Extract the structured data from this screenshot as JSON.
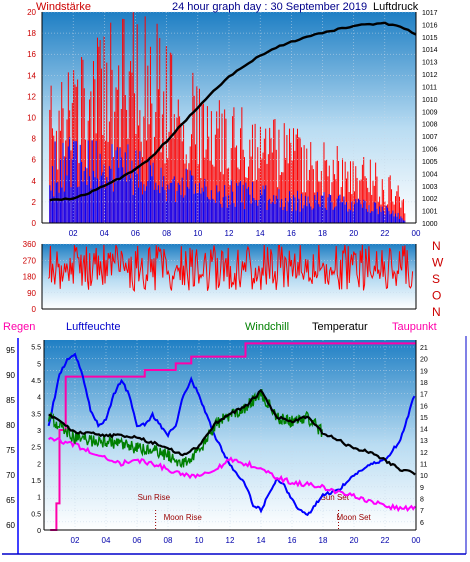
{
  "header": {
    "left_label": "Windstärke",
    "title": "24 hour graph day : 30 September 2019",
    "right_label": "Luftdruck"
  },
  "colors": {
    "wind_gust": "#ff0000",
    "wind_avg": "#0000ff",
    "pressure": "#000000",
    "direction": "#ff0000",
    "rain": "#ff00aa",
    "humidity": "#0000ff",
    "windchill": "#008000",
    "temperature": "#000000",
    "dewpoint": "#ff00ff",
    "tick_blue": "#0000aa",
    "label_red": "#cc0000"
  },
  "x_ticks": [
    "02",
    "04",
    "06",
    "08",
    "10",
    "12",
    "14",
    "16",
    "18",
    "20",
    "22",
    "00"
  ],
  "chart_data": [
    {
      "type": "bar",
      "name": "wind-pressure",
      "y_left_ticks": [
        "0",
        "2",
        "4",
        "6",
        "8",
        "10",
        "12",
        "14",
        "16",
        "18",
        "20"
      ],
      "ylim_left": [
        0,
        20
      ],
      "y_right_ticks": [
        "1000",
        "1001",
        "1002",
        "1003",
        "1004",
        "1005",
        "1006",
        "1007",
        "1008",
        "1009",
        "1010",
        "1011",
        "1012",
        "1013",
        "1014",
        "1015",
        "1016",
        "1017"
      ],
      "ylim_right": [
        1000,
        1017
      ],
      "pressure_x": [
        0.5,
        2,
        3,
        4,
        5,
        6,
        7,
        8,
        9,
        10,
        11,
        12,
        13,
        14,
        15,
        16,
        17,
        18,
        19,
        20,
        21,
        22,
        23,
        24
      ],
      "pressure_values": [
        1001.8,
        1002.0,
        1002.4,
        1003.0,
        1003.6,
        1004.3,
        1005.3,
        1006.6,
        1008.0,
        1009.3,
        1010.6,
        1011.8,
        1012.7,
        1013.5,
        1014.1,
        1014.6,
        1015.0,
        1015.3,
        1015.6,
        1015.9,
        1016.0,
        1016.1,
        1015.8,
        1015.2
      ],
      "gust_profile_x": [
        0.5,
        2,
        4,
        6,
        8,
        10,
        12,
        14,
        16,
        18,
        20,
        22,
        23.3
      ],
      "gust_profile_values": [
        10,
        12,
        14,
        15,
        14,
        10,
        9,
        8,
        7,
        6,
        5,
        4,
        2
      ],
      "avg_profile_x": [
        0.5,
        2,
        4,
        6,
        8,
        10,
        12,
        14,
        16,
        18,
        20,
        22,
        23.3
      ],
      "avg_profile_values": [
        6,
        7,
        6,
        6,
        5,
        4,
        3.5,
        3,
        2.5,
        2.5,
        2,
        1.5,
        0.5
      ]
    },
    {
      "type": "line",
      "name": "wind-direction",
      "y_left_ticks": [
        "0",
        "90",
        "180",
        "270",
        "360"
      ],
      "ylim": [
        0,
        360
      ],
      "compass_labels": [
        "N",
        "W",
        "S",
        "O",
        "N"
      ],
      "mean_direction": 230,
      "spread": 130
    },
    {
      "type": "line",
      "name": "climate",
      "header": {
        "rain": "Regen",
        "humidity": "Luftfeuchte",
        "windchill": "Windchill",
        "temperature": "Temperatur",
        "dewpoint": "Taupunkt"
      },
      "rain_ticks": [
        "0",
        "0.5",
        "1",
        "1.5",
        "2",
        "2.5",
        "3",
        "3.5",
        "4",
        "4.5",
        "5",
        "5.5"
      ],
      "rain_ylim": [
        0,
        5.7
      ],
      "humidity_ticks": [
        "60",
        "65",
        "70",
        "75",
        "80",
        "85",
        "90",
        "95"
      ],
      "humidity_ylim": [
        59,
        97
      ],
      "temp_ticks": [
        "6",
        "7",
        "8",
        "9",
        "10",
        "11",
        "12",
        "13",
        "14",
        "15",
        "16",
        "17",
        "18",
        "19",
        "20",
        "21"
      ],
      "temp_ylim": [
        5.3,
        21.6
      ],
      "temperature": {
        "x": [
          0.3,
          1,
          2,
          3,
          4,
          5,
          6,
          7,
          8,
          9,
          10,
          11,
          12,
          13,
          14,
          15,
          16,
          17,
          18,
          19,
          20,
          21,
          22,
          23,
          24
        ],
        "y": [
          15.2,
          14.6,
          13.7,
          13.6,
          13.4,
          13.4,
          13.2,
          12.8,
          12.3,
          11.7,
          12.5,
          14.4,
          15.3,
          15.9,
          17.2,
          15.0,
          14.6,
          15.0,
          13.6,
          13.0,
          12.3,
          12.0,
          11.3,
          10.5,
          10.1
        ]
      },
      "windchill": {
        "x": [
          0.3,
          1,
          2,
          3,
          4,
          5,
          6,
          7,
          8,
          9,
          10,
          11,
          12,
          13,
          14,
          15,
          16,
          17,
          18
        ],
        "y": [
          15.0,
          14.3,
          13.2,
          13.0,
          12.9,
          12.6,
          12.3,
          12.1,
          11.7,
          11.0,
          12.0,
          14.2,
          15.2,
          15.8,
          17.0,
          15.0,
          14.6,
          15.0,
          13.6
        ]
      },
      "dewpoint": {
        "x": [
          0.3,
          1,
          2,
          3,
          4,
          5,
          6,
          7,
          8,
          9,
          10,
          11,
          12,
          13,
          14,
          15,
          16,
          17,
          18,
          19,
          20,
          21,
          22,
          23,
          24
        ],
        "y": [
          13.2,
          13.0,
          12.6,
          12.0,
          11.5,
          11.0,
          11.3,
          11.0,
          10.5,
          10.0,
          10.0,
          10.5,
          11.3,
          11.0,
          10.6,
          9.8,
          9.4,
          9.2,
          9.0,
          8.5,
          8.2,
          7.8,
          7.4,
          7.1,
          7.2
        ]
      },
      "humidity": {
        "x": [
          0.3,
          1,
          1.5,
          2,
          2.5,
          3,
          3.5,
          4,
          4.5,
          5,
          5.5,
          6,
          6.5,
          7,
          7.5,
          8,
          8.5,
          9,
          9.5,
          10,
          10.5,
          11,
          12,
          13,
          13.5,
          14,
          14.5,
          15,
          15.5,
          16,
          16.5,
          17,
          17.5,
          18,
          19,
          20,
          21,
          22,
          23,
          24
        ],
        "y": [
          80,
          90,
          93,
          94,
          90,
          83,
          80,
          81,
          86,
          89,
          86,
          80,
          80,
          82,
          80,
          78,
          80,
          86,
          89,
          86,
          82,
          78,
          72,
          68,
          64,
          63,
          66,
          69,
          68,
          65,
          63,
          62,
          64,
          66,
          67,
          70,
          72,
          73,
          77,
          87
        ]
      },
      "rain": {
        "x": [
          0.4,
          0.8,
          1.0,
          1.4,
          2.5,
          4.0,
          5.5,
          6.5,
          7.0,
          8.5,
          9.5,
          12.0,
          13.0,
          24.0
        ],
        "y": [
          0,
          0.8,
          3.0,
          4.6,
          4.6,
          4.6,
          4.6,
          4.8,
          4.8,
          5.0,
          5.2,
          5.2,
          5.6,
          5.6
        ]
      },
      "annotations": [
        {
          "label": "Sun Rise",
          "x": 7.2
        },
        {
          "label": "Moon Rise",
          "x": 7.2
        },
        {
          "label": "Sun Set",
          "x": 19.0
        },
        {
          "label": "Moon Set",
          "x": 19.0
        }
      ]
    }
  ]
}
